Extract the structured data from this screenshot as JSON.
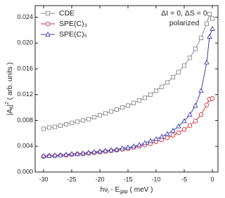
{
  "chart_data": {
    "type": "line",
    "xlabel": [
      "hν",
      "i",
      " - E",
      "gap",
      " ( meV )"
    ],
    "ylabel": [
      "|A",
      "fi",
      "|",
      "2",
      " ( arb. units )"
    ],
    "annotations": [
      "ΔI = 0, ΔS = 0",
      "polarized"
    ],
    "x": [
      -30,
      -29,
      -28,
      -27,
      -26,
      -25,
      -24,
      -23,
      -22,
      -21,
      -20,
      -19,
      -18,
      -17,
      -16,
      -15,
      -14,
      -13,
      -12,
      -11,
      -10,
      -9,
      -8,
      -7,
      -6,
      -5,
      -4,
      -3,
      -2,
      -1,
      -0.5,
      0
    ],
    "series": [
      {
        "name": "CDE",
        "color": "#8a8a8a",
        "marker": "square",
        "values": [
          0.0067,
          0.0069,
          0.007,
          0.0072,
          0.0074,
          0.0076,
          0.0078,
          0.008,
          0.0082,
          0.0085,
          0.0088,
          0.0091,
          0.0094,
          0.0097,
          0.01,
          0.0103,
          0.0107,
          0.0111,
          0.0115,
          0.012,
          0.0126,
          0.0132,
          0.0139,
          0.0147,
          0.0155,
          0.0165,
          0.0177,
          0.0191,
          0.0208,
          0.023,
          0.0245,
          0.0238
        ]
      },
      {
        "name": "SPE(C)₃",
        "color": "#d0303a",
        "marker": "circle",
        "values": [
          0.0024,
          0.0025,
          0.0025,
          0.0026,
          0.0026,
          0.0027,
          0.0028,
          0.0028,
          0.0029,
          0.003,
          0.0031,
          0.0032,
          0.0033,
          0.0034,
          0.0035,
          0.0036,
          0.0038,
          0.004,
          0.0042,
          0.0044,
          0.0047,
          0.005,
          0.0053,
          0.0057,
          0.0061,
          0.0066,
          0.0072,
          0.0079,
          0.0089,
          0.0104,
          0.0113,
          0.0114
        ]
      },
      {
        "name": "SPE(C)₅",
        "color": "#3a3fb0",
        "marker": "triangle",
        "values": [
          0.0025,
          0.0025,
          0.0026,
          0.0026,
          0.0027,
          0.0028,
          0.0028,
          0.0029,
          0.003,
          0.0031,
          0.0032,
          0.0033,
          0.0034,
          0.0035,
          0.0037,
          0.0038,
          0.004,
          0.0042,
          0.0045,
          0.0048,
          0.0051,
          0.0055,
          0.0059,
          0.0064,
          0.0071,
          0.0079,
          0.0089,
          0.0103,
          0.0126,
          0.017,
          0.021,
          0.0222
        ]
      }
    ],
    "xlim": [
      -31.5,
      1
    ],
    "xticks": [
      -30,
      -25,
      -20,
      -15,
      -10,
      -5,
      0
    ],
    "ylim": [
      0,
      0.0258
    ],
    "yticks": [
      {
        "value": 0,
        "label": "0.000"
      },
      {
        "value": 0.004,
        "label": "0.004"
      },
      {
        "value": 0.008,
        "label": "0.008"
      },
      {
        "value": 0.012,
        "label": "0.012"
      },
      {
        "value": 0.016,
        "label": "0.016"
      },
      {
        "value": 0.02,
        "label": "0.020"
      },
      {
        "value": 0.024,
        "label": "0.024"
      }
    ],
    "legend": "upper left"
  }
}
